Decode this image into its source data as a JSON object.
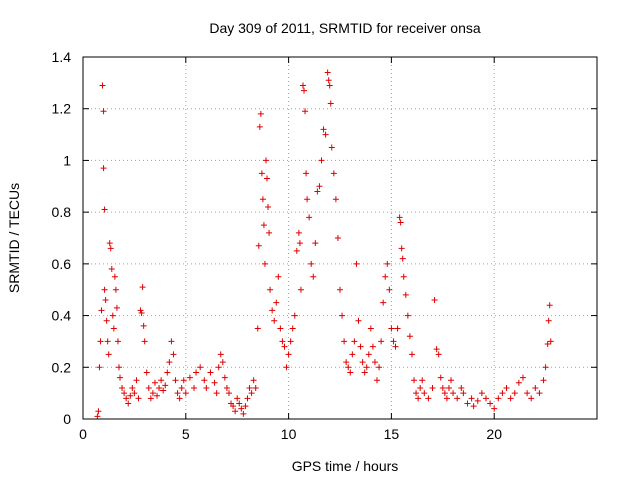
{
  "chart_data": {
    "type": "scatter",
    "title": "Day 309 of 2011, SRMTID for receiver onsa",
    "xlabel": "GPS time / hours",
    "ylabel": "SRMTID / TECUs",
    "xlim": [
      0,
      25
    ],
    "ylim": [
      0,
      1.4
    ],
    "xticks": [
      0,
      5,
      10,
      15,
      20
    ],
    "yticks": [
      0,
      0.2,
      0.4,
      0.6,
      0.8,
      1,
      1.2,
      1.4
    ],
    "xtick_labels": [
      "0",
      "5",
      "10",
      "15",
      "20"
    ],
    "ytick_labels": [
      "0",
      "0.2",
      "0.4",
      "0.6",
      "0.8",
      "1",
      "1.2",
      "1.4"
    ],
    "grid": true,
    "marker": "+",
    "color": "#e00000",
    "series": [
      {
        "name": "onsa",
        "points": [
          [
            0.7,
            0.01
          ],
          [
            0.75,
            0.03
          ],
          [
            0.8,
            0.2
          ],
          [
            0.85,
            0.3
          ],
          [
            0.9,
            0.42
          ],
          [
            0.95,
            1.29
          ],
          [
            1.0,
            1.19
          ],
          [
            1.0,
            0.97
          ],
          [
            1.05,
            0.81
          ],
          [
            1.05,
            0.5
          ],
          [
            1.1,
            0.46
          ],
          [
            1.15,
            0.38
          ],
          [
            1.2,
            0.3
          ],
          [
            1.25,
            0.25
          ],
          [
            1.3,
            0.68
          ],
          [
            1.35,
            0.66
          ],
          [
            1.4,
            0.58
          ],
          [
            1.45,
            0.4
          ],
          [
            1.5,
            0.35
          ],
          [
            1.55,
            0.55
          ],
          [
            1.6,
            0.5
          ],
          [
            1.65,
            0.43
          ],
          [
            1.7,
            0.3
          ],
          [
            1.75,
            0.2
          ],
          [
            1.8,
            0.16
          ],
          [
            1.9,
            0.12
          ],
          [
            2.0,
            0.1
          ],
          [
            2.1,
            0.08
          ],
          [
            2.2,
            0.06
          ],
          [
            2.3,
            0.09
          ],
          [
            2.4,
            0.12
          ],
          [
            2.5,
            0.1
          ],
          [
            2.6,
            0.15
          ],
          [
            2.7,
            0.08
          ],
          [
            2.8,
            0.42
          ],
          [
            2.85,
            0.41
          ],
          [
            2.9,
            0.51
          ],
          [
            2.95,
            0.36
          ],
          [
            3.0,
            0.3
          ],
          [
            3.1,
            0.18
          ],
          [
            3.2,
            0.12
          ],
          [
            3.3,
            0.08
          ],
          [
            3.4,
            0.1
          ],
          [
            3.5,
            0.14
          ],
          [
            3.6,
            0.09
          ],
          [
            3.7,
            0.12
          ],
          [
            3.8,
            0.15
          ],
          [
            3.9,
            0.11
          ],
          [
            4.0,
            0.13
          ],
          [
            4.1,
            0.18
          ],
          [
            4.2,
            0.22
          ],
          [
            4.3,
            0.3
          ],
          [
            4.4,
            0.25
          ],
          [
            4.5,
            0.15
          ],
          [
            4.6,
            0.1
          ],
          [
            4.7,
            0.08
          ],
          [
            4.8,
            0.12
          ],
          [
            4.9,
            0.15
          ],
          [
            5.0,
            0.1
          ],
          [
            5.2,
            0.16
          ],
          [
            5.4,
            0.12
          ],
          [
            5.5,
            0.18
          ],
          [
            5.7,
            0.2
          ],
          [
            5.9,
            0.15
          ],
          [
            6.0,
            0.12
          ],
          [
            6.2,
            0.18
          ],
          [
            6.4,
            0.14
          ],
          [
            6.5,
            0.1
          ],
          [
            6.6,
            0.2
          ],
          [
            6.7,
            0.25
          ],
          [
            6.8,
            0.22
          ],
          [
            6.9,
            0.16
          ],
          [
            7.0,
            0.12
          ],
          [
            7.1,
            0.1
          ],
          [
            7.2,
            0.06
          ],
          [
            7.3,
            0.05
          ],
          [
            7.4,
            0.03
          ],
          [
            7.5,
            0.08
          ],
          [
            7.6,
            0.06
          ],
          [
            7.7,
            0.04
          ],
          [
            7.8,
            0.02
          ],
          [
            7.9,
            0.05
          ],
          [
            8.0,
            0.08
          ],
          [
            8.1,
            0.12
          ],
          [
            8.2,
            0.1
          ],
          [
            8.3,
            0.15
          ],
          [
            8.4,
            0.12
          ],
          [
            8.5,
            0.35
          ],
          [
            8.55,
            0.67
          ],
          [
            8.6,
            1.13
          ],
          [
            8.65,
            1.18
          ],
          [
            8.7,
            0.95
          ],
          [
            8.75,
            0.85
          ],
          [
            8.8,
            0.75
          ],
          [
            8.85,
            0.6
          ],
          [
            8.9,
            1.0
          ],
          [
            8.95,
            0.93
          ],
          [
            9.0,
            0.82
          ],
          [
            9.05,
            0.72
          ],
          [
            9.1,
            0.5
          ],
          [
            9.2,
            0.42
          ],
          [
            9.3,
            0.38
          ],
          [
            9.4,
            0.45
          ],
          [
            9.5,
            0.55
          ],
          [
            9.6,
            0.35
          ],
          [
            9.7,
            0.3
          ],
          [
            9.8,
            0.28
          ],
          [
            9.9,
            0.2
          ],
          [
            10.0,
            0.25
          ],
          [
            10.1,
            0.3
          ],
          [
            10.2,
            0.35
          ],
          [
            10.3,
            0.4
          ],
          [
            10.4,
            0.65
          ],
          [
            10.5,
            0.72
          ],
          [
            10.55,
            0.68
          ],
          [
            10.6,
            0.5
          ],
          [
            10.7,
            1.29
          ],
          [
            10.75,
            1.27
          ],
          [
            10.8,
            1.19
          ],
          [
            10.85,
            0.95
          ],
          [
            10.9,
            0.85
          ],
          [
            11.0,
            0.78
          ],
          [
            11.1,
            0.6
          ],
          [
            11.2,
            0.55
          ],
          [
            11.3,
            0.68
          ],
          [
            11.4,
            0.88
          ],
          [
            11.5,
            0.9
          ],
          [
            11.6,
            1.0
          ],
          [
            11.7,
            1.12
          ],
          [
            11.8,
            1.1
          ],
          [
            11.9,
            1.34
          ],
          [
            11.95,
            1.31
          ],
          [
            12.0,
            1.29
          ],
          [
            12.05,
            1.22
          ],
          [
            12.1,
            1.05
          ],
          [
            12.2,
            0.95
          ],
          [
            12.3,
            0.85
          ],
          [
            12.4,
            0.7
          ],
          [
            12.5,
            0.5
          ],
          [
            12.6,
            0.4
          ],
          [
            12.7,
            0.3
          ],
          [
            12.8,
            0.22
          ],
          [
            12.9,
            0.2
          ],
          [
            13.0,
            0.18
          ],
          [
            13.1,
            0.25
          ],
          [
            13.2,
            0.3
          ],
          [
            13.3,
            0.6
          ],
          [
            13.4,
            0.38
          ],
          [
            13.5,
            0.28
          ],
          [
            13.6,
            0.22
          ],
          [
            13.7,
            0.18
          ],
          [
            13.8,
            0.2
          ],
          [
            13.9,
            0.25
          ],
          [
            14.0,
            0.35
          ],
          [
            14.1,
            0.28
          ],
          [
            14.2,
            0.22
          ],
          [
            14.3,
            0.15
          ],
          [
            14.4,
            0.2
          ],
          [
            14.5,
            0.3
          ],
          [
            14.6,
            0.45
          ],
          [
            14.7,
            0.55
          ],
          [
            14.8,
            0.6
          ],
          [
            14.9,
            0.5
          ],
          [
            15.0,
            0.35
          ],
          [
            15.1,
            0.3
          ],
          [
            15.2,
            0.28
          ],
          [
            15.3,
            0.35
          ],
          [
            15.4,
            0.78
          ],
          [
            15.45,
            0.76
          ],
          [
            15.5,
            0.66
          ],
          [
            15.55,
            0.62
          ],
          [
            15.6,
            0.55
          ],
          [
            15.7,
            0.48
          ],
          [
            15.8,
            0.4
          ],
          [
            15.9,
            0.32
          ],
          [
            16.0,
            0.25
          ],
          [
            16.1,
            0.15
          ],
          [
            16.2,
            0.1
          ],
          [
            16.3,
            0.08
          ],
          [
            16.4,
            0.12
          ],
          [
            16.5,
            0.15
          ],
          [
            16.6,
            0.1
          ],
          [
            16.8,
            0.08
          ],
          [
            17.0,
            0.12
          ],
          [
            17.1,
            0.46
          ],
          [
            17.2,
            0.27
          ],
          [
            17.3,
            0.25
          ],
          [
            17.4,
            0.16
          ],
          [
            17.5,
            0.12
          ],
          [
            17.6,
            0.1
          ],
          [
            17.7,
            0.08
          ],
          [
            17.8,
            0.12
          ],
          [
            17.9,
            0.15
          ],
          [
            18.0,
            0.1
          ],
          [
            18.2,
            0.08
          ],
          [
            18.4,
            0.12
          ],
          [
            18.5,
            0.1
          ],
          [
            18.7,
            0.06
          ],
          [
            18.9,
            0.08
          ],
          [
            19.0,
            0.05
          ],
          [
            19.2,
            0.07
          ],
          [
            19.4,
            0.1
          ],
          [
            19.6,
            0.08
          ],
          [
            19.8,
            0.06
          ],
          [
            20.0,
            0.04
          ],
          [
            20.2,
            0.08
          ],
          [
            20.4,
            0.1
          ],
          [
            20.6,
            0.12
          ],
          [
            20.8,
            0.08
          ],
          [
            21.0,
            0.1
          ],
          [
            21.2,
            0.14
          ],
          [
            21.4,
            0.16
          ],
          [
            21.6,
            0.1
          ],
          [
            21.8,
            0.08
          ],
          [
            22.0,
            0.12
          ],
          [
            22.2,
            0.1
          ],
          [
            22.4,
            0.15
          ],
          [
            22.5,
            0.2
          ],
          [
            22.6,
            0.29
          ],
          [
            22.65,
            0.38
          ],
          [
            22.7,
            0.44
          ],
          [
            22.75,
            0.3
          ]
        ]
      }
    ]
  }
}
